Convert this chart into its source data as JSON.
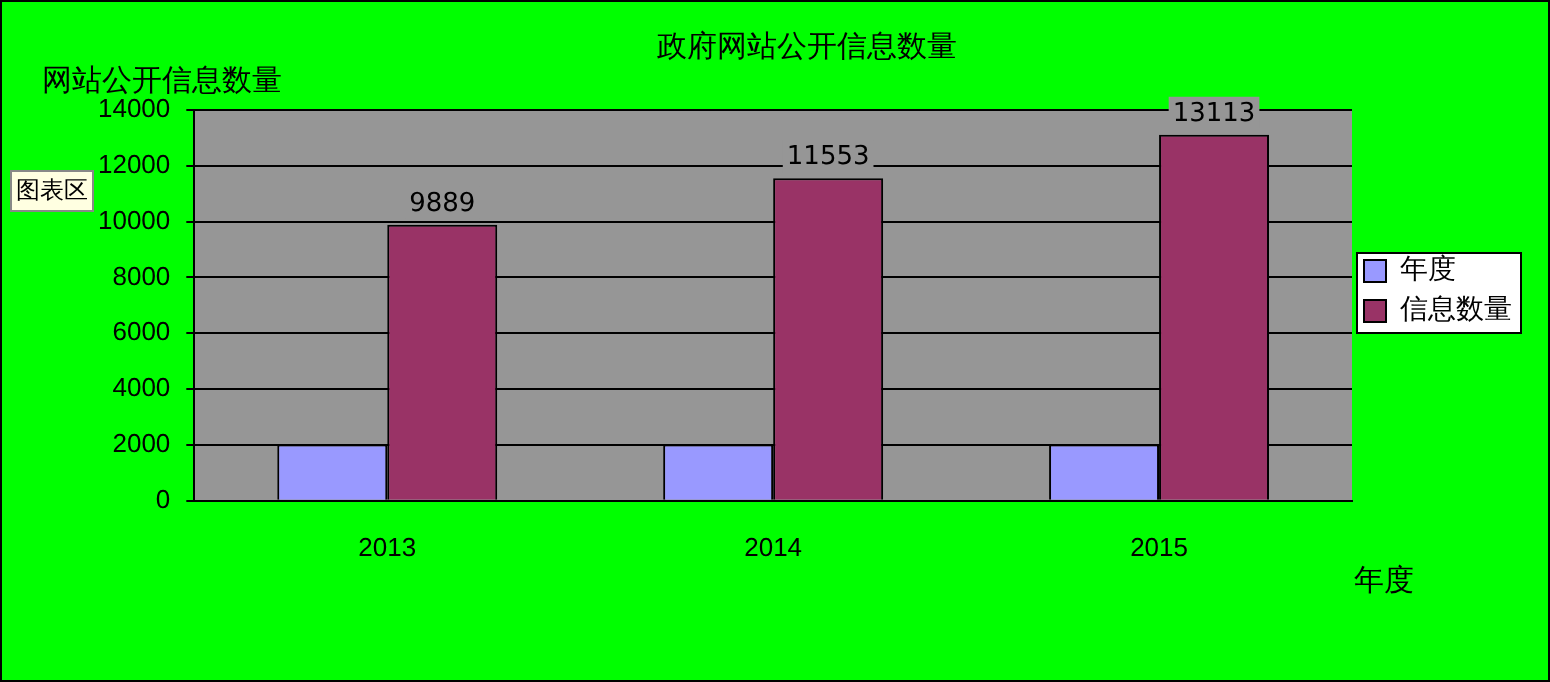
{
  "chart_data": {
    "type": "bar",
    "title": "政府网站公开信息数量",
    "ylabel": "网站公开信息数量",
    "xlabel": "年度",
    "annotations": [
      "图表区"
    ],
    "categories": [
      "2013",
      "2014",
      "2015"
    ],
    "series": [
      {
        "name": "年度",
        "color": "#9999ff",
        "values": [
          2013,
          2014,
          2015
        ]
      },
      {
        "name": "信息数量",
        "color": "#993366",
        "values": [
          9889,
          11553,
          13113
        ],
        "value_labels": [
          "9889",
          "11553",
          "13113"
        ]
      }
    ],
    "ylim": [
      0,
      14000
    ],
    "yticks": [
      0,
      2000,
      4000,
      6000,
      8000,
      10000,
      12000,
      14000
    ],
    "grid": "y",
    "legend": "right"
  }
}
